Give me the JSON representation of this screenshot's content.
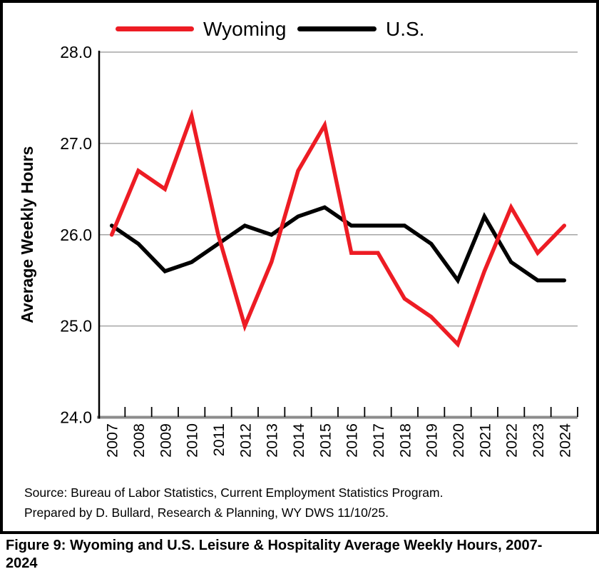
{
  "figure": {
    "caption": "Figure 9: Wyoming and U.S. Leisure & Hospitality Average Weekly Hours, 2007-2024",
    "caption_lines": [
      "Figure 9: Wyoming and U.S. Leisure & Hospitality Average Weekly Hours, 2007-",
      "2024"
    ],
    "source_lines": [
      "Source: Bureau of Labor Statistics, Current Employment Statistics Program.",
      "Prepared by D. Bullard, Research & Planning, WY DWS 11/10/25."
    ]
  },
  "legend": {
    "position": "top",
    "items": [
      {
        "label": "Wyoming",
        "color": "#ED1C24"
      },
      {
        "label": "U.S.",
        "color": "#000000"
      }
    ]
  },
  "chart_data": {
    "type": "line",
    "title": "",
    "xlabel": "",
    "ylabel": "Average Weekly Hours",
    "ylim": [
      24.0,
      28.0
    ],
    "ytick_labels": [
      "28.0",
      "27.0",
      "26.0",
      "25.0",
      "24.0"
    ],
    "ytick_values": [
      28.0,
      27.0,
      26.0,
      25.0,
      24.0
    ],
    "grid": true,
    "legend_position": "top",
    "categories": [
      "2007",
      "2008",
      "2009",
      "2010",
      "2011",
      "2012",
      "2013",
      "2014",
      "2015",
      "2016",
      "2017",
      "2018",
      "2019",
      "2020",
      "2021",
      "2022",
      "2023",
      "2024"
    ],
    "series": [
      {
        "name": "Wyoming",
        "color": "#ED1C24",
        "values": [
          26.0,
          26.7,
          26.5,
          27.3,
          26.0,
          25.0,
          25.7,
          26.7,
          27.2,
          25.8,
          25.8,
          25.3,
          25.1,
          24.8,
          25.6,
          26.3,
          25.8,
          26.1
        ]
      },
      {
        "name": "U.S.",
        "color": "#000000",
        "values": [
          26.1,
          25.9,
          25.6,
          25.7,
          25.9,
          26.1,
          26.0,
          26.2,
          26.3,
          26.1,
          26.1,
          26.1,
          25.9,
          25.5,
          26.2,
          25.7,
          25.5,
          25.5
        ]
      }
    ]
  },
  "style": {
    "gridline_color": "#A6A6A6",
    "xaxis_line_color": "#8C8C8C",
    "yaxis_line_color": "#000000",
    "background": "#FFFFFF"
  }
}
